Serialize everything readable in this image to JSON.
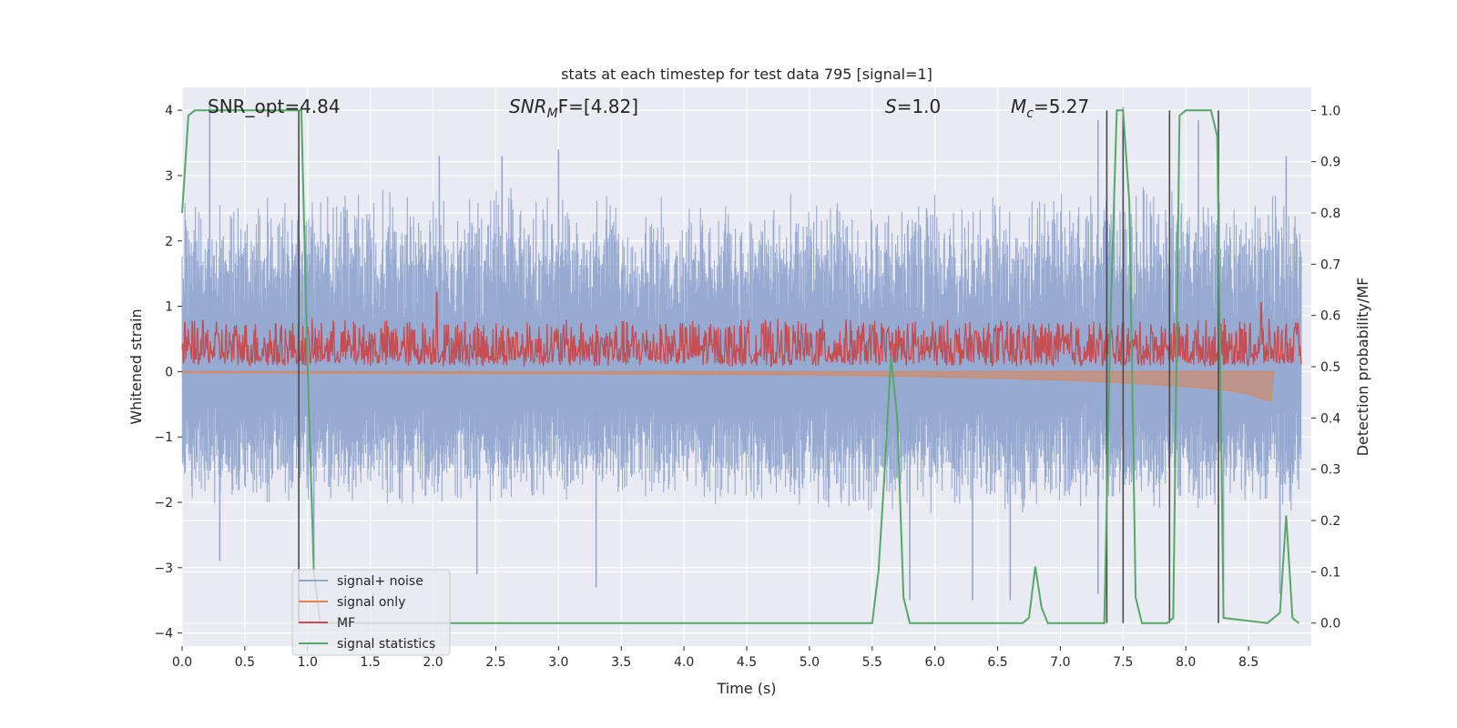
{
  "chart_data": {
    "type": "line",
    "title": "stats at each timestep for test data 795 [signal=1]",
    "xlabel": "Time (s)",
    "ylabel": "Whitened strain",
    "y2label": "Detection probability/MF",
    "xlim": [
      0.0,
      9.0
    ],
    "ylim": [
      -4.2,
      4.35
    ],
    "y2lim": [
      -0.045,
      1.045
    ],
    "x_ticks": [
      0.0,
      0.5,
      1.0,
      1.5,
      2.0,
      2.5,
      3.0,
      3.5,
      4.0,
      4.5,
      5.0,
      5.5,
      6.0,
      6.5,
      7.0,
      7.5,
      8.0,
      8.5
    ],
    "x_tick_labels": [
      "0.0",
      "0.5",
      "1.0",
      "1.5",
      "2.0",
      "2.5",
      "3.0",
      "3.5",
      "4.0",
      "4.5",
      "5.0",
      "5.5",
      "6.0",
      "6.5",
      "7.0",
      "7.5",
      "8.0",
      "8.5"
    ],
    "y_ticks": [
      4,
      3,
      2,
      1,
      0,
      -1,
      -2,
      -3,
      -4
    ],
    "y_tick_labels": [
      "4",
      "3",
      "2",
      "1",
      "0",
      "−1",
      "−2",
      "−3",
      "−4"
    ],
    "y2_ticks": [
      1.0,
      0.9,
      0.8,
      0.7,
      0.6,
      0.5,
      0.4,
      0.3,
      0.2,
      0.1,
      0.0
    ],
    "y2_tick_labels": [
      "1.0",
      "0.9",
      "0.8",
      "0.7",
      "0.6",
      "0.5",
      "0.4",
      "0.3",
      "0.2",
      "0.1",
      "0.0"
    ],
    "grid": true,
    "legend_position": "bottom-left",
    "annotations": {
      "snr_opt": "SNR_opt=4.84",
      "snr_mf_base": "SNR",
      "snr_mf_sub": "M",
      "snr_mf_rest": "F=[4.82]",
      "s_base": "S",
      "s_rest": "=1.0",
      "mc_base": "M",
      "mc_sub": "c",
      "mc_rest": "=5.27"
    },
    "series": [
      {
        "name": "signal+ noise",
        "color": "#92a7cf",
        "style": "noise band",
        "envelope_upper": [
          [
            0.0,
            2.1
          ],
          [
            1.0,
            2.2
          ],
          [
            2.0,
            2.2
          ],
          [
            3.0,
            2.2
          ],
          [
            4.0,
            2.1
          ],
          [
            5.0,
            2.1
          ],
          [
            6.0,
            2.1
          ],
          [
            7.0,
            2.2
          ],
          [
            8.0,
            2.3
          ],
          [
            8.9,
            2.3
          ]
        ],
        "envelope_lower": [
          [
            0.0,
            -1.6
          ],
          [
            1.0,
            -1.6
          ],
          [
            2.0,
            -1.7
          ],
          [
            3.0,
            -1.6
          ],
          [
            4.0,
            -1.6
          ],
          [
            5.0,
            -1.7
          ],
          [
            6.0,
            -1.7
          ],
          [
            7.0,
            -1.7
          ],
          [
            8.0,
            -1.7
          ],
          [
            8.9,
            -1.7
          ]
        ],
        "notable_peaks": [
          [
            0.22,
            4.1
          ],
          [
            0.93,
            3.3
          ],
          [
            2.05,
            3.3
          ],
          [
            2.55,
            3.3
          ],
          [
            3.0,
            3.4
          ],
          [
            7.3,
            3.85
          ],
          [
            7.5,
            4.05
          ],
          [
            8.1,
            3.85
          ],
          [
            8.8,
            3.3
          ]
        ],
        "notable_troughs": [
          [
            0.3,
            -2.9
          ],
          [
            1.05,
            -2.9
          ],
          [
            2.35,
            -3.1
          ],
          [
            3.3,
            -3.3
          ],
          [
            5.8,
            -3.5
          ],
          [
            6.3,
            -3.5
          ],
          [
            6.6,
            -3.5
          ],
          [
            7.3,
            -3.4
          ],
          [
            8.3,
            -3.4
          ],
          [
            8.75,
            -3.4
          ]
        ]
      },
      {
        "name": "signal only",
        "color": "#dd8452",
        "style": "chirp envelope",
        "points": [
          [
            0.0,
            -0.02
          ],
          [
            3.0,
            -0.03
          ],
          [
            5.0,
            -0.05
          ],
          [
            6.0,
            -0.08
          ],
          [
            6.5,
            -0.1
          ],
          [
            7.0,
            -0.13
          ],
          [
            7.5,
            -0.17
          ],
          [
            8.0,
            -0.23
          ],
          [
            8.3,
            -0.28
          ],
          [
            8.5,
            -0.34
          ],
          [
            8.6,
            -0.42
          ],
          [
            8.68,
            -0.45
          ],
          [
            8.7,
            0.0
          ]
        ]
      },
      {
        "name": "MF",
        "color": "#c44e52",
        "style": "noisy trace",
        "axis": "right",
        "base": 0.5,
        "range": [
          0.5,
          0.645
        ],
        "peaks": [
          [
            2.03,
            0.645
          ],
          [
            8.6,
            0.625
          ]
        ]
      },
      {
        "name": "signal statistics",
        "color": "#55a868",
        "axis": "right",
        "x": [
          0.0,
          0.05,
          0.1,
          0.15,
          0.2,
          0.25,
          0.3,
          0.35,
          0.4,
          0.45,
          0.5,
          0.55,
          0.6,
          0.65,
          0.7,
          0.75,
          0.8,
          0.85,
          0.9,
          0.95,
          1.0,
          1.05,
          1.1,
          5.5,
          5.55,
          5.6,
          5.65,
          5.7,
          5.75,
          5.8,
          6.7,
          6.75,
          6.8,
          6.85,
          6.9,
          7.35,
          7.4,
          7.45,
          7.5,
          7.55,
          7.6,
          7.65,
          7.85,
          7.9,
          7.95,
          8.0,
          8.05,
          8.1,
          8.15,
          8.2,
          8.25,
          8.3,
          8.65,
          8.7,
          8.75,
          8.8,
          8.85,
          8.9
        ],
        "values": [
          0.8,
          0.99,
          1.0,
          1.0,
          1.0,
          1.0,
          1.0,
          1.0,
          1.0,
          1.0,
          1.0,
          1.0,
          1.0,
          1.0,
          1.0,
          1.0,
          1.0,
          1.0,
          1.0,
          1.0,
          0.5,
          0.1,
          0.0,
          0.0,
          0.1,
          0.3,
          0.52,
          0.4,
          0.05,
          0.0,
          0.0,
          0.01,
          0.11,
          0.03,
          0.0,
          0.0,
          0.6,
          1.0,
          1.0,
          0.82,
          0.05,
          0.0,
          0.0,
          0.01,
          0.99,
          1.0,
          1.0,
          1.0,
          1.0,
          1.0,
          0.95,
          0.01,
          0.0,
          0.01,
          0.02,
          0.21,
          0.01,
          0.0
        ]
      }
    ],
    "vertical_markers": {
      "color": "#4a4a4a",
      "x": [
        0.93,
        7.37,
        7.5,
        7.87,
        8.26
      ]
    }
  }
}
